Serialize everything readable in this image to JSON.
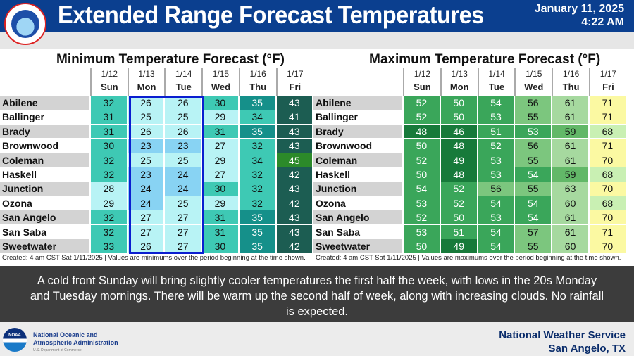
{
  "header": {
    "title": "Extended Range Forecast Temperatures",
    "date": "January 11, 2025",
    "time": "4:22 AM",
    "logo_text": "NATIONAL WEATHER SERVICE"
  },
  "days": [
    {
      "date": "1/12",
      "day": "Sun"
    },
    {
      "date": "1/13",
      "day": "Mon"
    },
    {
      "date": "1/14",
      "day": "Tue"
    },
    {
      "date": "1/15",
      "day": "Wed"
    },
    {
      "date": "1/16",
      "day": "Thu"
    },
    {
      "date": "1/17",
      "day": "Fri"
    }
  ],
  "cities": [
    "Abilene",
    "Ballinger",
    "Brady",
    "Brownwood",
    "Coleman",
    "Haskell",
    "Junction",
    "Ozona",
    "San Angelo",
    "San Saba",
    "Sweetwater"
  ],
  "min": {
    "title": "Minimum Temperature Forecast (°F)",
    "note": "Created: 4 am CST Sat 1/11/2025  |  Values are minimums over the period beginning at the time shown.",
    "values": [
      [
        32,
        26,
        26,
        30,
        35,
        43
      ],
      [
        31,
        25,
        25,
        29,
        34,
        41
      ],
      [
        31,
        26,
        26,
        31,
        35,
        43
      ],
      [
        30,
        23,
        23,
        27,
        32,
        43
      ],
      [
        32,
        25,
        25,
        29,
        34,
        45
      ],
      [
        32,
        23,
        24,
        27,
        32,
        42
      ],
      [
        28,
        24,
        24,
        30,
        32,
        43
      ],
      [
        29,
        24,
        25,
        29,
        32,
        42
      ],
      [
        32,
        27,
        27,
        31,
        35,
        43
      ],
      [
        32,
        27,
        27,
        31,
        35,
        43
      ],
      [
        33,
        26,
        27,
        30,
        35,
        42
      ]
    ]
  },
  "max": {
    "title": "Maximum Temperature Forecast (°F)",
    "note": "Created: 4 am CST Sat 1/11/2025  |  Values are maximums over the period beginning at the time shown.",
    "values": [
      [
        52,
        50,
        54,
        56,
        61,
        71
      ],
      [
        52,
        50,
        53,
        55,
        61,
        71
      ],
      [
        48,
        46,
        51,
        53,
        59,
        68
      ],
      [
        50,
        48,
        52,
        56,
        61,
        71
      ],
      [
        52,
        49,
        53,
        55,
        61,
        70
      ],
      [
        50,
        48,
        53,
        54,
        59,
        68
      ],
      [
        54,
        52,
        56,
        55,
        63,
        70
      ],
      [
        53,
        52,
        54,
        54,
        60,
        68
      ],
      [
        52,
        50,
        53,
        54,
        61,
        70
      ],
      [
        53,
        51,
        54,
        57,
        61,
        71
      ],
      [
        50,
        49,
        54,
        55,
        60,
        70
      ]
    ]
  },
  "message": "A cold front Sunday will bring slightly cooler temperatures the first half the week, with lows in the 20s Monday and Tuesday mornings. There will be warm up the second half of week, along with increasing clouds. No rainfall is expected.",
  "footer": {
    "noaa_line1": "National Oceanic and",
    "noaa_line2": "Atmospheric Administration",
    "noaa_line3": "U.S. Department of Commerce",
    "noaa_logo_text": "NOAA",
    "office_line1": "National Weather Service",
    "office_line2": "San Angelo, TX"
  }
}
